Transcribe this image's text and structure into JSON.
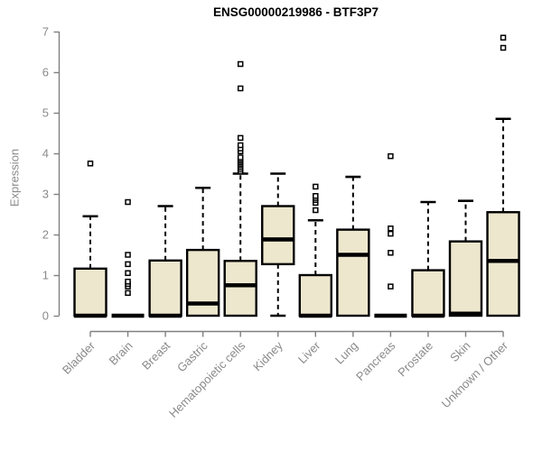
{
  "title": "ENSG00000219986 - BTF3P7",
  "chart_data": {
    "type": "boxplot",
    "title": "ENSG00000219986 - BTF3P7",
    "xlabel": "",
    "ylabel": "Expression",
    "ylim": [
      0,
      7
    ],
    "yticks": [
      0,
      1,
      2,
      3,
      4,
      5,
      6,
      7
    ],
    "grid": false,
    "legend": "none",
    "categories": [
      "Bladder",
      "Brain",
      "Breast",
      "Gastric",
      "Hematopoietic cells",
      "Kidney",
      "Liver",
      "Lung",
      "Pancreas",
      "Prostate",
      "Skin",
      "Unknown / Other"
    ],
    "series": [
      {
        "name": "Bladder",
        "whisker_low": 0,
        "q1": 0,
        "median": 0,
        "q3": 1.16,
        "whisker_high": 2.45,
        "outliers": [
          3.75
        ]
      },
      {
        "name": "Brain",
        "whisker_low": 0,
        "q1": 0,
        "median": 0,
        "q3": 0,
        "whisker_high": 0,
        "outliers": [
          0.56,
          0.72,
          0.78,
          0.84,
          1.05,
          1.27,
          1.5,
          2.8
        ]
      },
      {
        "name": "Breast",
        "whisker_low": 0,
        "q1": 0,
        "median": 0,
        "q3": 1.36,
        "whisker_high": 2.7,
        "outliers": []
      },
      {
        "name": "Gastric",
        "whisker_low": 0,
        "q1": 0,
        "median": 0.3,
        "q3": 1.62,
        "whisker_high": 3.15,
        "outliers": []
      },
      {
        "name": "Hematopoietic cells",
        "whisker_low": 0,
        "q1": 0,
        "median": 0.75,
        "q3": 1.35,
        "whisker_high": 3.5,
        "outliers": [
          3.55,
          3.6,
          3.65,
          3.7,
          3.74,
          3.78,
          3.82,
          3.86,
          3.9,
          4.05,
          4.12,
          4.2,
          4.38,
          5.6,
          6.2
        ]
      },
      {
        "name": "Kidney",
        "whisker_low": 0,
        "q1": 1.27,
        "median": 1.88,
        "q3": 2.7,
        "whisker_high": 3.5,
        "outliers": []
      },
      {
        "name": "Liver",
        "whisker_low": 0,
        "q1": 0,
        "median": 0,
        "q3": 1.0,
        "whisker_high": 2.35,
        "outliers": [
          2.6,
          2.78,
          2.85,
          2.9,
          2.95,
          3.18
        ]
      },
      {
        "name": "Lung",
        "whisker_low": 0,
        "q1": 0,
        "median": 1.5,
        "q3": 2.12,
        "whisker_high": 3.42,
        "outliers": []
      },
      {
        "name": "Pancreas",
        "whisker_low": 0,
        "q1": 0,
        "median": 0,
        "q3": 0,
        "whisker_high": 0,
        "outliers": [
          0.72,
          1.55,
          2.02,
          2.15,
          3.93
        ]
      },
      {
        "name": "Prostate",
        "whisker_low": 0,
        "q1": 0,
        "median": 0,
        "q3": 1.12,
        "whisker_high": 2.8,
        "outliers": []
      },
      {
        "name": "Skin",
        "whisker_low": 0,
        "q1": 0,
        "median": 0.05,
        "q3": 1.83,
        "whisker_high": 2.83,
        "outliers": []
      },
      {
        "name": "Unknown / Other",
        "whisker_low": 0,
        "q1": 0,
        "median": 1.35,
        "q3": 2.55,
        "whisker_high": 4.85,
        "outliers": [
          6.6,
          6.85
        ]
      }
    ],
    "colors": {
      "box_fill": "#EDE7CE",
      "box_stroke": "#000000",
      "median": "#000000",
      "whisker": "#000000",
      "axis": "#808080",
      "tick_label": "#8a8a8a",
      "title": "#000000",
      "background": "#ffffff"
    }
  }
}
